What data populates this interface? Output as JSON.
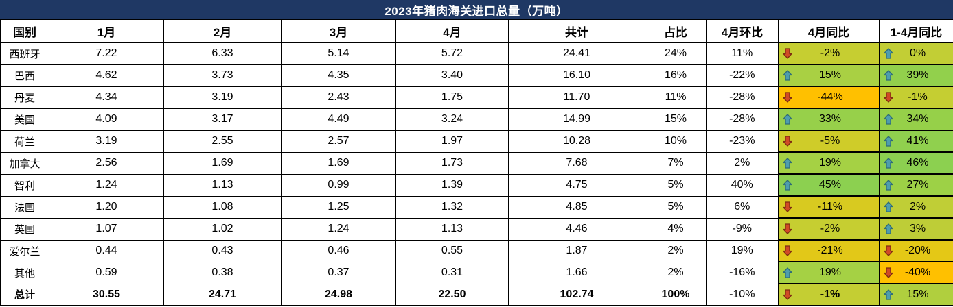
{
  "chart_data": {
    "type": "table",
    "title": "2023年猪肉海关进口总量（万吨）",
    "unit": "万吨",
    "columns": [
      "国别",
      "1月",
      "2月",
      "3月",
      "4月",
      "共计",
      "占比",
      "4月环比",
      "4月同比",
      "1-4月同比"
    ],
    "rows": [
      {
        "country": "西班牙",
        "m1": "7.22",
        "m2": "6.33",
        "m3": "5.14",
        "m4": "5.72",
        "total": "24.41",
        "share": "24%",
        "mom": "11%",
        "yoy": {
          "dir": "down",
          "text": "-2%",
          "bg": "#C6CE31"
        },
        "ytd": {
          "dir": "up",
          "text": "0%",
          "bg": "#C2CE35"
        }
      },
      {
        "country": "巴西",
        "m1": "4.62",
        "m2": "3.73",
        "m3": "4.35",
        "m4": "3.40",
        "total": "16.10",
        "share": "16%",
        "mom": "-22%",
        "yoy": {
          "dir": "up",
          "text": "15%",
          "bg": "#A9D043"
        },
        "ytd": {
          "dir": "up",
          "text": "39%",
          "bg": "#92D04C"
        }
      },
      {
        "country": "丹麦",
        "m1": "4.34",
        "m2": "3.19",
        "m3": "2.43",
        "m4": "1.75",
        "total": "11.70",
        "share": "11%",
        "mom": "-28%",
        "yoy": {
          "dir": "down",
          "text": "-44%",
          "bg": "#FFC000"
        },
        "ytd": {
          "dir": "down",
          "text": "-1%",
          "bg": "#C5CE32"
        }
      },
      {
        "country": "美国",
        "m1": "4.09",
        "m2": "3.17",
        "m3": "4.49",
        "m4": "3.24",
        "total": "14.99",
        "share": "15%",
        "mom": "-28%",
        "yoy": {
          "dir": "up",
          "text": "33%",
          "bg": "#97D04A"
        },
        "ytd": {
          "dir": "up",
          "text": "34%",
          "bg": "#96D049"
        }
      },
      {
        "country": "荷兰",
        "m1": "3.19",
        "m2": "2.55",
        "m3": "2.57",
        "m4": "1.97",
        "total": "10.28",
        "share": "10%",
        "mom": "-23%",
        "yoy": {
          "dir": "down",
          "text": "-5%",
          "bg": "#CFCC29"
        },
        "ytd": {
          "dir": "up",
          "text": "41%",
          "bg": "#90D04E"
        }
      },
      {
        "country": "加拿大",
        "m1": "2.56",
        "m2": "1.69",
        "m3": "1.69",
        "m4": "1.73",
        "total": "7.68",
        "share": "7%",
        "mom": "2%",
        "yoy": {
          "dir": "up",
          "text": "19%",
          "bg": "#A5D144"
        },
        "ytd": {
          "dir": "up",
          "text": "46%",
          "bg": "#8CD050"
        }
      },
      {
        "country": "智利",
        "m1": "1.24",
        "m2": "1.13",
        "m3": "0.99",
        "m4": "1.39",
        "total": "4.75",
        "share": "5%",
        "mom": "40%",
        "yoy": {
          "dir": "up",
          "text": "45%",
          "bg": "#8CD050"
        },
        "ytd": {
          "dir": "up",
          "text": "27%",
          "bg": "#9DD146"
        }
      },
      {
        "country": "法国",
        "m1": "1.20",
        "m2": "1.08",
        "m3": "1.25",
        "m4": "1.32",
        "total": "4.85",
        "share": "5%",
        "mom": "6%",
        "yoy": {
          "dir": "down",
          "text": "-11%",
          "bg": "#D8CA20"
        },
        "ytd": {
          "dir": "up",
          "text": "2%",
          "bg": "#C0CE36"
        }
      },
      {
        "country": "英国",
        "m1": "1.07",
        "m2": "1.02",
        "m3": "1.24",
        "m4": "1.13",
        "total": "4.46",
        "share": "4%",
        "mom": "-9%",
        "yoy": {
          "dir": "down",
          "text": "-2%",
          "bg": "#C6CE31"
        },
        "ytd": {
          "dir": "up",
          "text": "3%",
          "bg": "#BECD37"
        }
      },
      {
        "country": "爱尔兰",
        "m1": "0.44",
        "m2": "0.43",
        "m3": "0.46",
        "m4": "0.55",
        "total": "1.87",
        "share": "2%",
        "mom": "19%",
        "yoy": {
          "dir": "down",
          "text": "-21%",
          "bg": "#E2C818"
        },
        "ytd": {
          "dir": "down",
          "text": "-20%",
          "bg": "#E4C816"
        }
      },
      {
        "country": "其他",
        "m1": "0.59",
        "m2": "0.38",
        "m3": "0.37",
        "m4": "0.31",
        "total": "1.66",
        "share": "2%",
        "mom": "-16%",
        "yoy": {
          "dir": "up",
          "text": "19%",
          "bg": "#A5D144"
        },
        "ytd": {
          "dir": "down",
          "text": "-40%",
          "bg": "#FFC000"
        }
      },
      {
        "country": "总计",
        "is_total": true,
        "m1": "30.55",
        "m2": "24.71",
        "m3": "24.98",
        "m4": "22.50",
        "total": "102.74",
        "share": "100%",
        "mom": "-10%",
        "regular": [
          "mom"
        ],
        "yoy": {
          "dir": "down",
          "text": "-1%",
          "bg": "#C4CE33",
          "bold": true
        },
        "ytd": {
          "dir": "up",
          "text": "15%",
          "bg": "#B0CF3E",
          "bold": false
        }
      }
    ]
  },
  "colors": {
    "title_bg": "#1F3864",
    "title_text": "#FFFFFF",
    "grid_line": "#000000",
    "orange_low": "#FFC000",
    "green_high": "#8CD050",
    "up_arrow_fill": "#4E9DAE",
    "up_arrow_outline": "#2F6B77",
    "down_arrow_fill": "#D04A26",
    "down_arrow_outline": "#7E2D12"
  }
}
